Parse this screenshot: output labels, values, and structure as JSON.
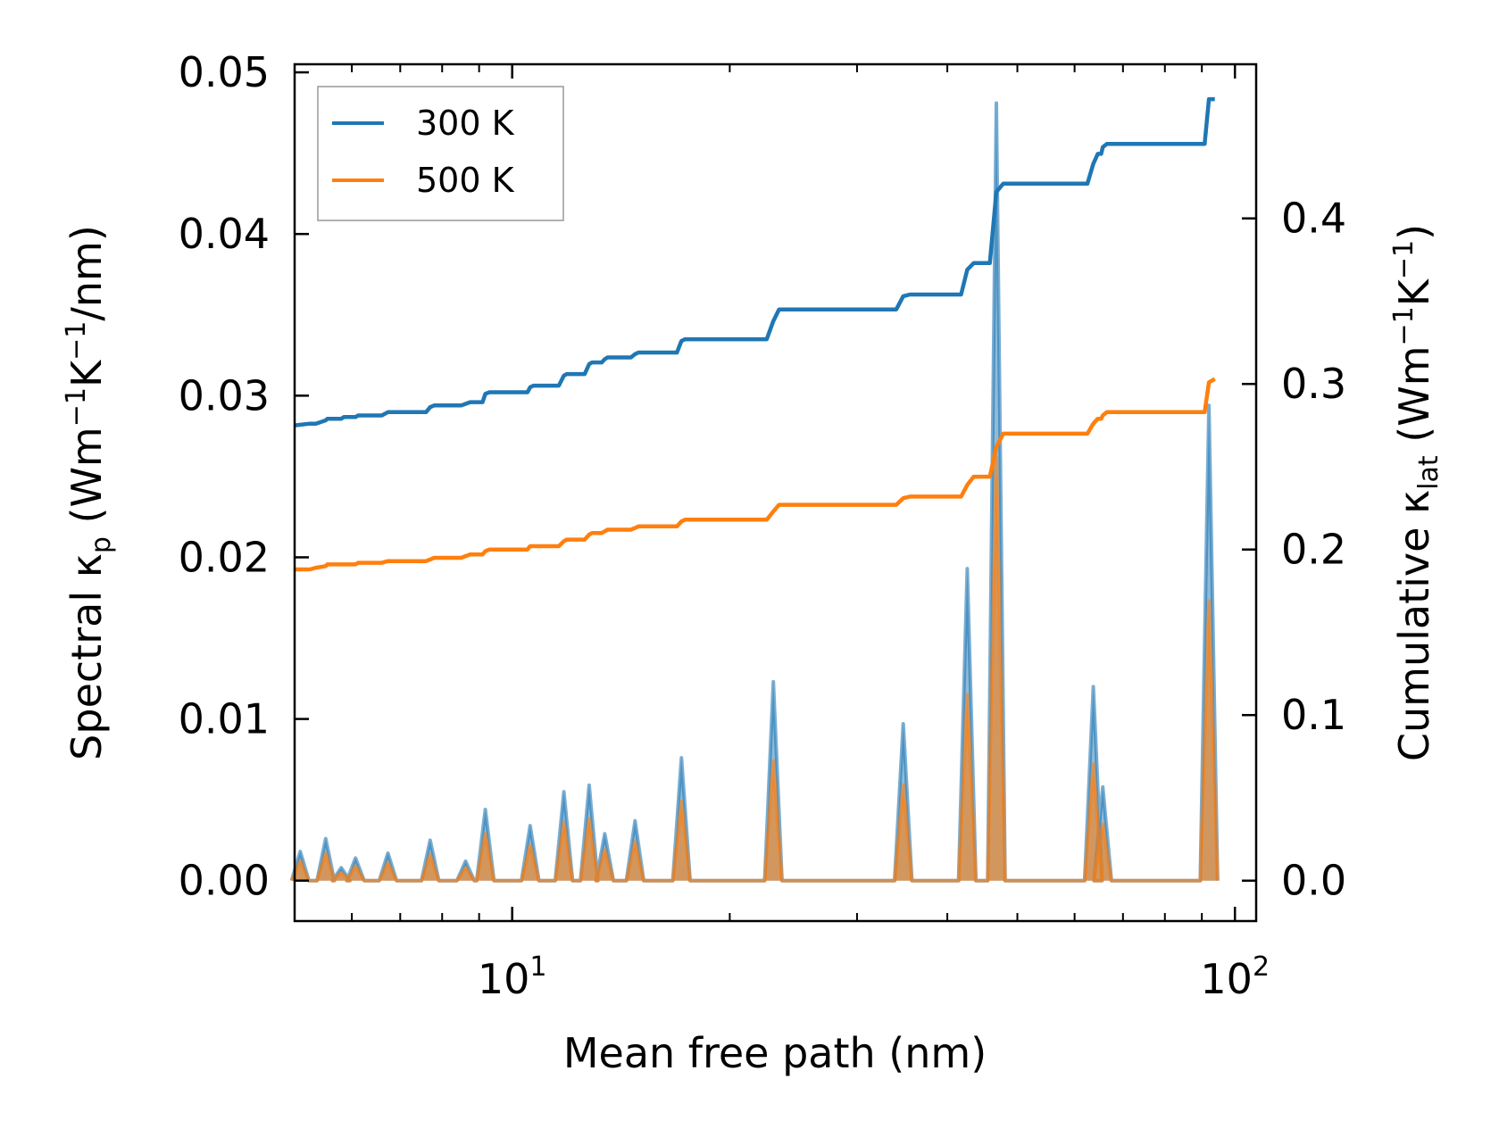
{
  "chart_data": {
    "type": "line",
    "xscale": "log",
    "xlim": [
      5.0,
      107.0
    ],
    "xlabel": "Mean free path (nm)",
    "xtick_labels": [
      {
        "value": 10,
        "base": "10",
        "exp": "1"
      },
      {
        "value": 100,
        "base": "10",
        "exp": "2"
      }
    ],
    "left_axis": {
      "label_parts": [
        "Spectral κ",
        "p",
        " (Wm",
        "−1",
        "K",
        "−1",
        "/nm)"
      ],
      "ylim": [
        -0.0025,
        0.0505
      ],
      "ticks": [
        0.0,
        0.01,
        0.02,
        0.03,
        0.04,
        0.05
      ],
      "tick_labels": [
        "0.00",
        "0.01",
        "0.02",
        "0.03",
        "0.04",
        "0.05"
      ]
    },
    "right_axis": {
      "label_parts": [
        "Cumulative κ",
        "lat",
        " (Wm",
        "−1",
        "K",
        "−1",
        ")"
      ],
      "ylim": [
        -0.0244,
        0.4931
      ],
      "ticks": [
        0.0,
        0.1,
        0.2,
        0.3,
        0.4
      ],
      "tick_labels": [
        "0.0",
        "0.1",
        "0.2",
        "0.3",
        "0.4"
      ]
    },
    "legend": {
      "position": "upper-left",
      "entries": [
        "300 K",
        "500 K"
      ]
    },
    "colors": {
      "300 K": "#1f77b4",
      "500 K": "#ff7f0e"
    },
    "spectral_series": [
      {
        "name": "300 K",
        "axis": "left",
        "peaks": [
          [
            5.09,
            0.0018
          ],
          [
            5.52,
            0.0026
          ],
          [
            5.8,
            0.0008
          ],
          [
            6.07,
            0.0014
          ],
          [
            6.73,
            0.0017
          ],
          [
            7.7,
            0.0025
          ],
          [
            8.62,
            0.0012
          ],
          [
            9.18,
            0.0044
          ],
          [
            10.59,
            0.0034
          ],
          [
            11.79,
            0.0055
          ],
          [
            12.78,
            0.0059
          ],
          [
            13.43,
            0.0029
          ],
          [
            14.79,
            0.0037
          ],
          [
            17.15,
            0.0076
          ],
          [
            22.98,
            0.0123
          ],
          [
            34.76,
            0.0097
          ],
          [
            42.62,
            0.0193
          ],
          [
            46.77,
            0.0481
          ],
          [
            63.69,
            0.012
          ],
          [
            65.63,
            0.0058
          ],
          [
            92.05,
            0.0294
          ]
        ]
      },
      {
        "name": "500 K",
        "axis": "left",
        "peaks": [
          [
            5.09,
            0.0012
          ],
          [
            5.52,
            0.0017
          ],
          [
            5.8,
            0.0005
          ],
          [
            6.07,
            0.0009
          ],
          [
            6.73,
            0.0011
          ],
          [
            7.7,
            0.0016
          ],
          [
            8.62,
            0.0008
          ],
          [
            9.18,
            0.0029
          ],
          [
            10.59,
            0.0022
          ],
          [
            11.79,
            0.0036
          ],
          [
            12.78,
            0.0038
          ],
          [
            13.43,
            0.0019
          ],
          [
            14.79,
            0.0024
          ],
          [
            17.15,
            0.0049
          ],
          [
            22.98,
            0.0074
          ],
          [
            34.76,
            0.0059
          ],
          [
            42.62,
            0.0115
          ],
          [
            46.77,
            0.0262
          ],
          [
            63.69,
            0.0072
          ],
          [
            65.63,
            0.0035
          ],
          [
            92.05,
            0.0173
          ]
        ]
      }
    ],
    "cumulative_series": [
      {
        "name": "300 K",
        "axis": "right",
        "x": [
          5.0,
          5.25,
          5.35,
          5.52,
          5.55,
          5.8,
          5.85,
          6.07,
          6.12,
          6.6,
          6.73,
          6.8,
          7.6,
          7.7,
          7.8,
          8.5,
          8.62,
          8.75,
          9.1,
          9.18,
          9.3,
          10.5,
          10.59,
          10.7,
          11.6,
          11.79,
          11.9,
          12.6,
          12.78,
          12.9,
          13.3,
          13.43,
          13.55,
          14.6,
          14.79,
          14.95,
          16.9,
          17.15,
          17.35,
          22.5,
          22.98,
          23.4,
          34.0,
          34.76,
          35.5,
          41.8,
          42.62,
          43.5,
          45.8,
          46.77,
          47.8,
          62.5,
          63.69,
          64.6,
          65.3,
          65.63,
          66.5,
          90.8,
          92.05,
          93.8
        ],
        "y": [
          0.275,
          0.276,
          0.276,
          0.278,
          0.279,
          0.279,
          0.28,
          0.28,
          0.281,
          0.281,
          0.283,
          0.283,
          0.283,
          0.286,
          0.287,
          0.287,
          0.288,
          0.289,
          0.289,
          0.294,
          0.295,
          0.295,
          0.298,
          0.299,
          0.299,
          0.305,
          0.306,
          0.306,
          0.312,
          0.313,
          0.313,
          0.315,
          0.316,
          0.316,
          0.318,
          0.319,
          0.319,
          0.326,
          0.327,
          0.327,
          0.338,
          0.345,
          0.345,
          0.353,
          0.354,
          0.354,
          0.369,
          0.373,
          0.373,
          0.416,
          0.421,
          0.421,
          0.433,
          0.439,
          0.439,
          0.443,
          0.445,
          0.445,
          0.472,
          0.472
        ]
      },
      {
        "name": "500 K",
        "axis": "right",
        "x": [
          5.0,
          5.25,
          5.35,
          5.52,
          5.55,
          5.8,
          5.85,
          6.07,
          6.12,
          6.6,
          6.73,
          6.8,
          7.6,
          7.7,
          7.8,
          8.5,
          8.62,
          8.75,
          9.1,
          9.18,
          9.3,
          10.5,
          10.59,
          10.7,
          11.6,
          11.79,
          11.9,
          12.6,
          12.78,
          12.9,
          13.3,
          13.43,
          13.55,
          14.6,
          14.79,
          14.95,
          16.9,
          17.15,
          17.35,
          22.5,
          22.98,
          23.4,
          34.0,
          34.76,
          35.5,
          41.8,
          42.62,
          43.5,
          45.8,
          46.77,
          47.8,
          62.5,
          63.69,
          64.6,
          65.3,
          65.63,
          66.5,
          90.8,
          92.05,
          93.8
        ],
        "y": [
          0.188,
          0.188,
          0.189,
          0.19,
          0.191,
          0.191,
          0.191,
          0.191,
          0.192,
          0.192,
          0.193,
          0.193,
          0.193,
          0.194,
          0.195,
          0.195,
          0.196,
          0.197,
          0.197,
          0.199,
          0.2,
          0.2,
          0.202,
          0.202,
          0.202,
          0.205,
          0.206,
          0.206,
          0.209,
          0.21,
          0.21,
          0.211,
          0.212,
          0.212,
          0.213,
          0.214,
          0.214,
          0.217,
          0.218,
          0.218,
          0.223,
          0.227,
          0.227,
          0.231,
          0.232,
          0.232,
          0.239,
          0.244,
          0.244,
          0.262,
          0.27,
          0.27,
          0.276,
          0.279,
          0.279,
          0.281,
          0.283,
          0.283,
          0.301,
          0.303
        ]
      }
    ]
  }
}
